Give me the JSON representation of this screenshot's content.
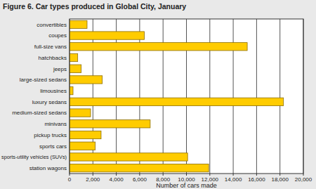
{
  "chart_data": {
    "type": "bar",
    "orientation": "horizontal",
    "title": "Figure 6. Car types produced in Global City, January",
    "xlabel": "Number of cars made",
    "categories": [
      "convertibles",
      "coupes",
      "full-size vans",
      "hatchbacks",
      "jeeps",
      "large-sized sedans",
      "limousines",
      "luxury sedans",
      "medium-sized sedans",
      "minivans",
      "pickup trucks",
      "sports cars",
      "sports-utility vehicles (SUVs)",
      "station wagons"
    ],
    "values": [
      1500,
      6400,
      15200,
      700,
      1000,
      2800,
      300,
      18300,
      1800,
      6900,
      2700,
      2200,
      10100,
      11900
    ],
    "color": "#ffcc00",
    "xlim": [
      0,
      20000
    ],
    "xticks": [
      0,
      {
        "value": 2000,
        "label": "2,000"
      },
      {
        "value": 4000,
        "label": "4,000"
      },
      {
        "value": 6000,
        "label": "6,000"
      },
      {
        "value": 8000,
        "label": "8,000"
      },
      {
        "value": 10000,
        "label": "10,000"
      },
      {
        "value": 12000,
        "label": "12,000"
      },
      {
        "value": 14000,
        "label": "14,000"
      },
      {
        "value": 16000,
        "label": "16,000"
      },
      {
        "value": 18000,
        "label": "18,000"
      },
      {
        "value": 20000,
        "label": "20,000"
      }
    ],
    "grid": true
  }
}
